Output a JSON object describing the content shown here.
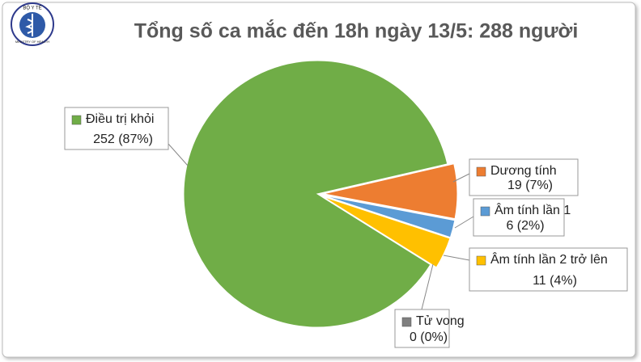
{
  "logo": {
    "top": "BỘ Y TẾ",
    "bottom": "MINISTRY OF HEALTH"
  },
  "chart_data": {
    "type": "pie",
    "title": "Tổng số ca mắc đến 18h ngày 13/5: 288 người",
    "categories": [
      "Điều trị khỏi",
      "Dương tính",
      "Âm tính lần 1",
      "Âm tính lần 2 trở lên",
      "Tử vong"
    ],
    "values": [
      252,
      19,
      6,
      11,
      0
    ],
    "value_labels": [
      "252 (87%)",
      "19 (7%)",
      "6 (2%)",
      "11 (4%)",
      "0 (0%)"
    ],
    "colors": [
      "#70ad47",
      "#ed7d31",
      "#5b9bd5",
      "#ffc000",
      "#7f7f7f"
    ]
  }
}
